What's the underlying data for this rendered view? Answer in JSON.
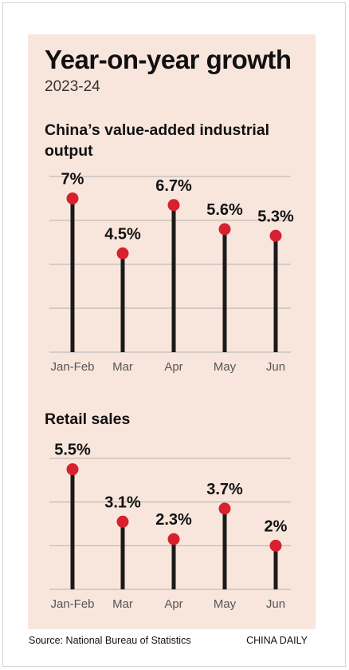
{
  "header": {
    "title": "Year-on-year growth",
    "subtitle": "2023-24"
  },
  "colors": {
    "background": "#f8e6dd",
    "stem": "#1a1a1a",
    "dot": "#d8202f",
    "grid": "#b5b0ad",
    "tick_label": "#555555"
  },
  "chart_data": [
    {
      "type": "lollipop",
      "title": "China’s value-added industrial output",
      "categories": [
        "Jan-Feb",
        "Mar",
        "Apr",
        "May",
        "Jun"
      ],
      "values": [
        7,
        4.5,
        6.7,
        5.6,
        5.3
      ],
      "data_labels": [
        "7%",
        "4.5%",
        "6.7%",
        "5.6%",
        "5.3%"
      ],
      "unit": "%",
      "ylim": [
        0,
        8
      ],
      "grid": true
    },
    {
      "type": "lollipop",
      "title": "Retail sales",
      "categories": [
        "Jan-Feb",
        "Mar",
        "Apr",
        "May",
        "Jun"
      ],
      "values": [
        5.5,
        3.1,
        2.3,
        3.7,
        2
      ],
      "data_labels": [
        "5.5%",
        "3.1%",
        "2.3%",
        "3.7%",
        "2%"
      ],
      "unit": "%",
      "ylim": [
        0,
        6
      ],
      "grid": true
    }
  ],
  "footer": {
    "source": "Source: National Bureau of Statistics",
    "credit": "CHINA DAILY"
  }
}
